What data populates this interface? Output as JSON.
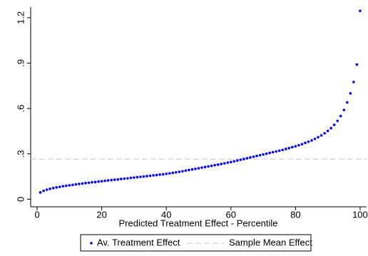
{
  "chart_data": {
    "type": "scatter",
    "x_label": "Predicted Treatment Effect - Percentile",
    "x": [
      1,
      2,
      3,
      4,
      5,
      6,
      7,
      8,
      9,
      10,
      11,
      12,
      13,
      14,
      15,
      16,
      17,
      18,
      19,
      20,
      21,
      22,
      23,
      24,
      25,
      26,
      27,
      28,
      29,
      30,
      31,
      32,
      33,
      34,
      35,
      36,
      37,
      38,
      39,
      40,
      41,
      42,
      43,
      44,
      45,
      46,
      47,
      48,
      49,
      50,
      51,
      52,
      53,
      54,
      55,
      56,
      57,
      58,
      59,
      60,
      61,
      62,
      63,
      64,
      65,
      66,
      67,
      68,
      69,
      70,
      71,
      72,
      73,
      74,
      75,
      76,
      77,
      78,
      79,
      80,
      81,
      82,
      83,
      84,
      85,
      86,
      87,
      88,
      89,
      90,
      91,
      92,
      93,
      94,
      95,
      96,
      97,
      98,
      99,
      100
    ],
    "series": [
      {
        "name": "Av. Treatment Effect",
        "color": "#0000ff",
        "values": [
          0.045,
          0.056,
          0.063,
          0.069,
          0.074,
          0.078,
          0.082,
          0.086,
          0.089,
          0.092,
          0.095,
          0.098,
          0.101,
          0.104,
          0.107,
          0.109,
          0.112,
          0.114,
          0.117,
          0.119,
          0.122,
          0.124,
          0.127,
          0.129,
          0.131,
          0.134,
          0.136,
          0.138,
          0.141,
          0.143,
          0.146,
          0.148,
          0.15,
          0.153,
          0.155,
          0.158,
          0.16,
          0.163,
          0.165,
          0.168,
          0.171,
          0.174,
          0.178,
          0.181,
          0.185,
          0.189,
          0.193,
          0.197,
          0.201,
          0.205,
          0.209,
          0.213,
          0.217,
          0.221,
          0.225,
          0.229,
          0.233,
          0.237,
          0.242,
          0.246,
          0.251,
          0.256,
          0.261,
          0.266,
          0.271,
          0.276,
          0.281,
          0.286,
          0.291,
          0.296,
          0.301,
          0.306,
          0.311,
          0.316,
          0.321,
          0.326,
          0.332,
          0.338,
          0.344,
          0.35,
          0.357,
          0.364,
          0.372,
          0.38,
          0.389,
          0.399,
          0.41,
          0.422,
          0.436,
          0.452,
          0.47,
          0.492,
          0.518,
          0.55,
          0.59,
          0.64,
          0.7,
          0.775,
          0.89,
          1.245
        ]
      }
    ],
    "reference_line": {
      "name": "Sample Mean Effect",
      "value": 0.265,
      "color": "#c8c8c8"
    },
    "xlim": [
      -2,
      102
    ],
    "xticks": [
      0,
      20,
      40,
      60,
      80,
      100
    ],
    "ylim": [
      -0.05,
      1.27
    ],
    "yticks": [
      0,
      {
        "value": 0.3,
        "label": ".3"
      },
      {
        "value": 0.6,
        "label": ".6"
      },
      {
        "value": 0.9,
        "label": ".9"
      },
      1.2
    ],
    "legend": "bottom"
  }
}
